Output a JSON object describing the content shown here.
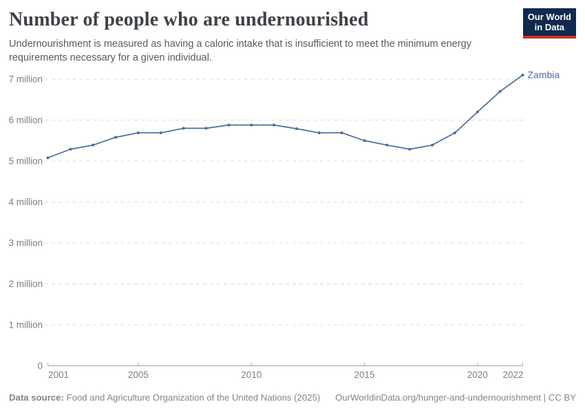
{
  "header": {
    "title": "Number of people who are undernourished",
    "subtitle": "Undernourishment is measured as having a caloric intake that is insufficient to meet the minimum energy requirements necessary for a given individual."
  },
  "logo": {
    "line1": "Our World",
    "line2": "in Data"
  },
  "chart_data": {
    "type": "line",
    "title": "Number of people who are undernourished",
    "entity": "Zambia",
    "unit": "people",
    "values_in": "millions",
    "x": [
      2001,
      2002,
      2003,
      2004,
      2005,
      2006,
      2007,
      2008,
      2009,
      2010,
      2011,
      2012,
      2013,
      2014,
      2015,
      2016,
      2017,
      2018,
      2019,
      2020,
      2021,
      2022
    ],
    "series": [
      {
        "name": "Zambia",
        "values": [
          5.08,
          5.29,
          5.39,
          5.58,
          5.69,
          5.69,
          5.8,
          5.8,
          5.88,
          5.88,
          5.88,
          5.79,
          5.69,
          5.69,
          5.5,
          5.39,
          5.29,
          5.39,
          5.69,
          6.2,
          6.7,
          7.1
        ]
      }
    ],
    "xlim": [
      2001,
      2022
    ],
    "ylim": [
      0,
      7.25
    ],
    "x_ticks": [
      2001,
      2005,
      2010,
      2015,
      2020,
      2022
    ],
    "y_ticks": [
      {
        "value": 0,
        "label": "0"
      },
      {
        "value": 1,
        "label": "1 million"
      },
      {
        "value": 2,
        "label": "2 million"
      },
      {
        "value": 3,
        "label": "3 million"
      },
      {
        "value": 4,
        "label": "4 million"
      },
      {
        "value": 5,
        "label": "5 million"
      },
      {
        "value": 6,
        "label": "6 million"
      },
      {
        "value": 7,
        "label": "7 million"
      }
    ],
    "grid": "horizontal-dashed",
    "legend_position": "end-of-line-label"
  },
  "colors": {
    "line": "#4c6a9d",
    "entity_label": "#4f6da3",
    "grid": "#dcdcdc",
    "axis": "#a3a3a3",
    "tick": "#b3b3b3",
    "tick_label": "#7e7e7e",
    "logo_bg": "#102a4e",
    "logo_bar": "#cf3122"
  },
  "footer": {
    "source_label": "Data source:",
    "source_text": " Food and Agriculture Organization of the United Nations (2025)",
    "link_text": "OurWorldinData.org/hunger-and-undernourishment | CC BY"
  }
}
